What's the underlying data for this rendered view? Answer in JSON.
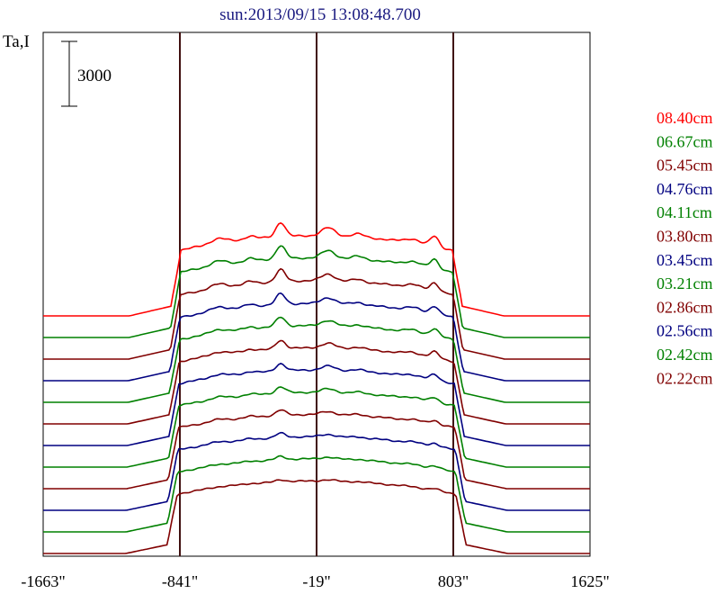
{
  "chart_data": {
    "type": "line",
    "title": "sun:2013/09/15 13:08:48.700",
    "ylabel": "Ta,I",
    "xlabel": "",
    "scale_bar": {
      "label": "3000",
      "value": 3000
    },
    "x_ticks": [
      "-1663\"",
      "-841\"",
      "-19\"",
      "803\"",
      "1625\""
    ],
    "x_tick_values": [
      -1663,
      -841,
      -19,
      803,
      1625
    ],
    "xlim": [
      -1663,
      1625
    ],
    "vertical_lines": [
      -841,
      -19,
      803
    ],
    "grid": false,
    "legend_placement": "right",
    "series": [
      {
        "name": "08.40cm",
        "color": "#ff0000",
        "offset": 10500,
        "peak": 6750
      },
      {
        "name": "06.67cm",
        "color": "#008000",
        "offset": 9500,
        "peak": 6700
      },
      {
        "name": "05.45cm",
        "color": "#800000",
        "offset": 8500,
        "peak": 6600
      },
      {
        "name": "04.76cm",
        "color": "#000080",
        "offset": 7500,
        "peak": 6500
      },
      {
        "name": "04.11cm",
        "color": "#008000",
        "offset": 6500,
        "peak": 6450
      },
      {
        "name": "03.80cm",
        "color": "#800000",
        "offset": 5500,
        "peak": 6400
      },
      {
        "name": "03.45cm",
        "color": "#000080",
        "offset": 4500,
        "peak": 6350
      },
      {
        "name": "03.21cm",
        "color": "#008000",
        "offset": 3500,
        "peak": 6300
      },
      {
        "name": "02.86cm",
        "color": "#800000",
        "offset": 2500,
        "peak": 6250
      },
      {
        "name": "02.56cm",
        "color": "#000080",
        "offset": 1500,
        "peak": 6200
      },
      {
        "name": "02.42cm",
        "color": "#008000",
        "offset": 500,
        "peak": 6150
      },
      {
        "name": "02.22cm",
        "color": "#800000",
        "offset": -500,
        "peak": 6100
      }
    ]
  }
}
